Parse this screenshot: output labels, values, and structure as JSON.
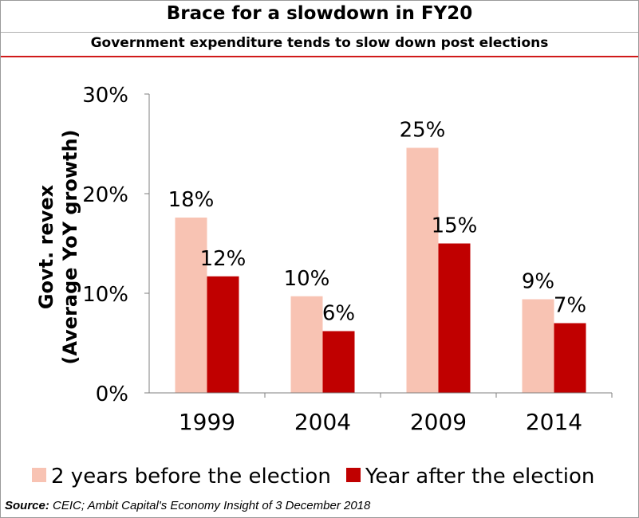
{
  "header": {
    "title": "Brace for a slowdown in FY20",
    "subtitle": "Government expenditure tends to slow down post elections"
  },
  "chart_data": {
    "type": "bar",
    "title": "Brace for a slowdown in FY20",
    "subtitle": "Government expenditure tends to slow down post elections",
    "categories": [
      "1999",
      "2004",
      "2009",
      "2014"
    ],
    "series": [
      {
        "name": "2 years before the election",
        "values": [
          17.6,
          9.7,
          24.6,
          9.4
        ],
        "labels": [
          "18%",
          "10%",
          "25%",
          "9%"
        ],
        "color": "#f8c3b3"
      },
      {
        "name": "Year after the election",
        "values": [
          11.7,
          6.2,
          15.0,
          7.0
        ],
        "labels": [
          "12%",
          "6%",
          "15%",
          "7%"
        ],
        "color": "#c00000"
      }
    ],
    "ylabel_line1": "Govt. revex",
    "ylabel_line2": "(Average YoY growth)",
    "xlabel": "",
    "ylim": [
      0,
      30
    ],
    "yticks": [
      0,
      10,
      20,
      30
    ],
    "ytick_labels": [
      "0%",
      "10%",
      "20%",
      "30%"
    ],
    "legend_position": "bottom",
    "grid": false
  },
  "source": {
    "label": "Source:",
    "text": "CEIC; Ambit Capital's Economy Insight of 3 December 2018"
  }
}
